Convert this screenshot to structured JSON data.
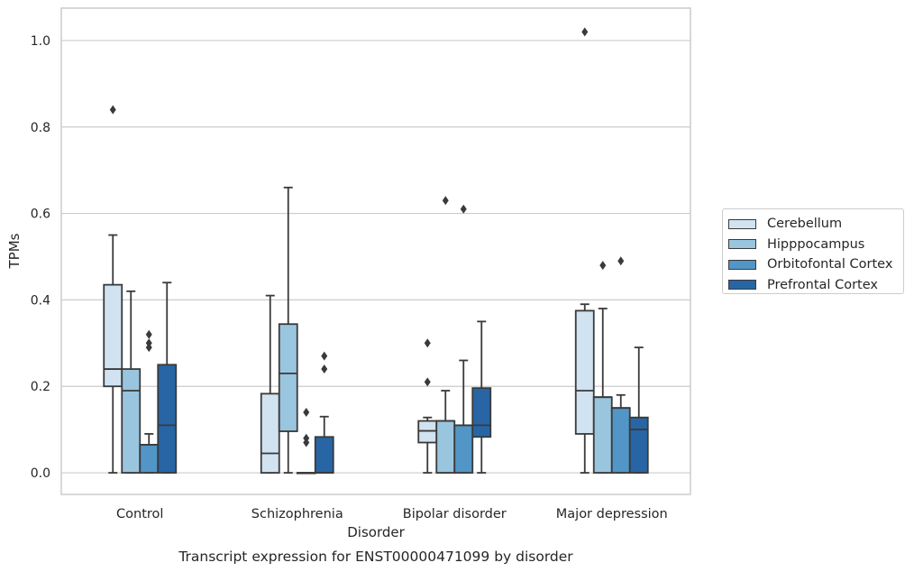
{
  "chart_data": {
    "type": "box",
    "title": "",
    "caption": "Transcript expression for ENST00000471099 by disorder",
    "xlabel": "Disorder",
    "ylabel": "TPMs",
    "ylim": [
      -0.05,
      1.075
    ],
    "yticks": [
      0.0,
      0.2,
      0.4,
      0.6,
      0.8,
      1.0
    ],
    "ytick_labels": [
      "0.0",
      "0.2",
      "0.4",
      "0.6",
      "0.8",
      "1.0"
    ],
    "grid": "horizontal",
    "legend_placement": "outside right",
    "categories": [
      "Control",
      "Schizophrenia",
      "Bipolar disorder",
      "Major depression"
    ],
    "series": [
      {
        "name": "Cerebellum",
        "color": "#d1e2f1",
        "boxes": [
          {
            "whisker_low": 0.0,
            "q1": 0.2,
            "median": 0.24,
            "q3": 0.435,
            "whisker_high": 0.55,
            "outliers": [
              0.84
            ]
          },
          {
            "whisker_low": 0.0,
            "q1": 0.0,
            "median": 0.045,
            "q3": 0.183,
            "whisker_high": 0.41,
            "outliers": []
          },
          {
            "whisker_low": 0.0,
            "q1": 0.07,
            "median": 0.097,
            "q3": 0.12,
            "whisker_high": 0.128,
            "outliers": [
              0.21,
              0.3
            ]
          },
          {
            "whisker_low": 0.0,
            "q1": 0.09,
            "median": 0.19,
            "q3": 0.375,
            "whisker_high": 0.39,
            "outliers": [
              1.02
            ]
          }
        ]
      },
      {
        "name": "Hipppocampus",
        "color": "#9ac5de",
        "boxes": [
          {
            "whisker_low": 0.0,
            "q1": 0.0,
            "median": 0.19,
            "q3": 0.24,
            "whisker_high": 0.42,
            "outliers": []
          },
          {
            "whisker_low": 0.0,
            "q1": 0.096,
            "median": 0.23,
            "q3": 0.344,
            "whisker_high": 0.66,
            "outliers": []
          },
          {
            "whisker_low": 0.0,
            "q1": 0.0,
            "median": 0.12,
            "q3": 0.12,
            "whisker_high": 0.19,
            "outliers": [
              0.63
            ]
          },
          {
            "whisker_low": 0.0,
            "q1": 0.0,
            "median": 0.175,
            "q3": 0.175,
            "whisker_high": 0.38,
            "outliers": [
              0.48
            ]
          }
        ]
      },
      {
        "name": "Orbitofontal Cortex",
        "color": "#5196c7",
        "boxes": [
          {
            "whisker_low": 0.0,
            "q1": 0.0,
            "median": 0.065,
            "q3": 0.065,
            "whisker_high": 0.09,
            "outliers": [
              0.29,
              0.3,
              0.32
            ]
          },
          {
            "whisker_low": 0.0,
            "q1": 0.0,
            "median": 0.0,
            "q3": 0.0,
            "whisker_high": 0.0,
            "outliers": [
              0.07,
              0.08,
              0.14
            ]
          },
          {
            "whisker_low": 0.0,
            "q1": 0.0,
            "median": 0.11,
            "q3": 0.11,
            "whisker_high": 0.26,
            "outliers": [
              0.61
            ]
          },
          {
            "whisker_low": 0.0,
            "q1": 0.0,
            "median": 0.15,
            "q3": 0.15,
            "whisker_high": 0.18,
            "outliers": [
              0.49
            ]
          }
        ]
      },
      {
        "name": "Prefrontal Cortex",
        "color": "#2765a5",
        "boxes": [
          {
            "whisker_low": 0.0,
            "q1": 0.0,
            "median": 0.11,
            "q3": 0.25,
            "whisker_high": 0.44,
            "outliers": []
          },
          {
            "whisker_low": 0.0,
            "q1": 0.0,
            "median": 0.0,
            "q3": 0.083,
            "whisker_high": 0.13,
            "outliers": [
              0.24,
              0.27
            ]
          },
          {
            "whisker_low": 0.0,
            "q1": 0.083,
            "median": 0.11,
            "q3": 0.196,
            "whisker_high": 0.35,
            "outliers": []
          },
          {
            "whisker_low": 0.0,
            "q1": 0.0,
            "median": 0.1,
            "q3": 0.128,
            "whisker_high": 0.29,
            "outliers": []
          }
        ]
      }
    ]
  },
  "colors": {
    "grid": "#cccccc",
    "axis_frame": "#cccccc",
    "box_edge": "#3a3a3a",
    "text": "#262626"
  }
}
